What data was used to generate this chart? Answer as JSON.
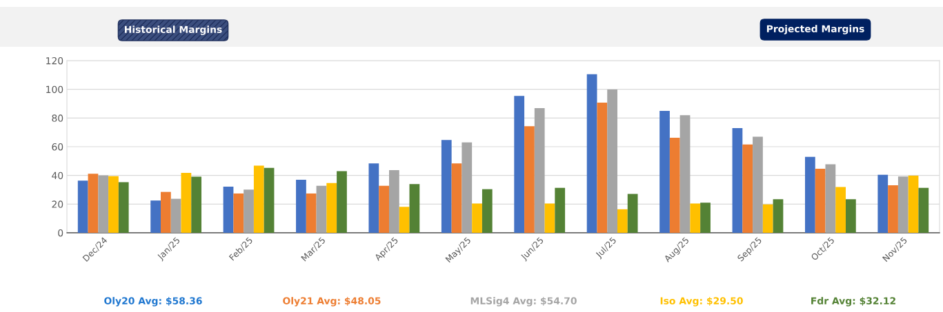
{
  "chart_data": {
    "type": "bar",
    "categories": [
      "Dec/24",
      "Jan/25",
      "Feb/25",
      "Mar/25",
      "Apr/25",
      "May/25",
      "Jun/25",
      "Jul/25",
      "Aug/25",
      "Sep/25",
      "Oct/25",
      "Nov/25"
    ],
    "series": [
      {
        "color": "#4472c4",
        "values": [
          36.4,
          22.5,
          32.2,
          37,
          48.4,
          64.7,
          95.4,
          110.5,
          85,
          72.9,
          52.9,
          40.4
        ]
      },
      {
        "color": "#ed7d31",
        "values": [
          41.2,
          28.5,
          27.4,
          27.4,
          32.8,
          48.4,
          74.3,
          90.7,
          66.3,
          61.6,
          44.6,
          33.1
        ]
      },
      {
        "color": "#a5a5a5",
        "values": [
          40,
          23.7,
          30.1,
          32.8,
          43.7,
          63,
          86.9,
          99.8,
          82,
          66.9,
          47.7,
          39.2
        ]
      },
      {
        "color": "#ffc000",
        "values": [
          39.5,
          41.8,
          46.8,
          34.7,
          18.1,
          20.4,
          20.4,
          16.4,
          20.4,
          19.8,
          31.9,
          39.8
        ]
      },
      {
        "color": "#548235",
        "values": [
          35.3,
          39.1,
          45.3,
          43,
          33.9,
          30.4,
          31.3,
          27.1,
          21,
          23.4,
          23.4,
          31.3
        ]
      }
    ],
    "ylim": [
      0,
      120
    ],
    "yticks": [
      0,
      20,
      40,
      60,
      80,
      100,
      120
    ],
    "grid": "y",
    "annotations": [
      "Historical Margins",
      "Projected Margins",
      "Oly20 Avg: $58.36",
      "Oly21 Avg: $48.05",
      "MLSig4 Avg: $54.70",
      "Iso Avg: $29.50",
      "Fdr Avg: $32.12"
    ]
  }
}
